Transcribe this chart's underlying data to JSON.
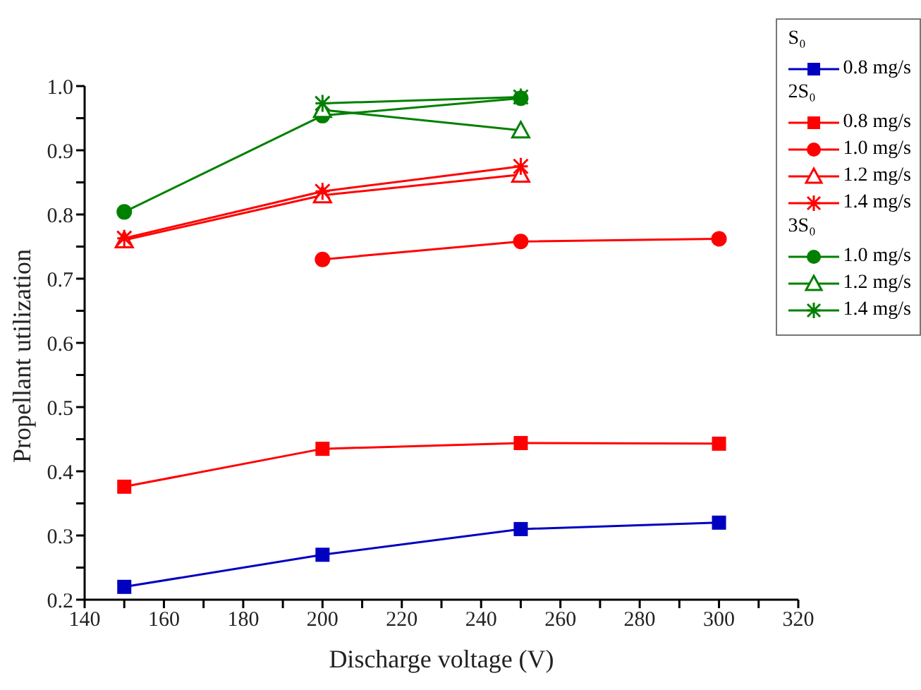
{
  "chart_data": {
    "type": "line",
    "xlabel": "Discharge voltage (V)",
    "ylabel": "Propellant utilization",
    "x": [
      150,
      200,
      250,
      300
    ],
    "series": [
      {
        "name": "0.8 mg/s",
        "color": "#0000c0",
        "marker": "square",
        "values": [
          0.22,
          0.27,
          0.31,
          0.32
        ]
      },
      {
        "name": "0.8 mg/s",
        "color": "#ff0000",
        "marker": "square",
        "values": [
          0.376,
          0.435,
          0.444,
          0.443
        ]
      },
      {
        "name": "1.0 mg/s",
        "color": "#ff0000",
        "marker": "circle",
        "values": [
          null,
          0.73,
          0.758,
          0.762
        ]
      },
      {
        "name": "1.2 mg/s",
        "color": "#ff0000",
        "marker": "triangle",
        "values": [
          0.76,
          0.83,
          0.862,
          null
        ]
      },
      {
        "name": "1.4 mg/s",
        "color": "#ff0000",
        "marker": "cross",
        "values": [
          0.763,
          0.836,
          0.875,
          null
        ]
      },
      {
        "name": "1.0 mg/s",
        "color": "#008000",
        "marker": "circle",
        "values": [
          0.804,
          0.954,
          0.981,
          null
        ]
      },
      {
        "name": "1.2 mg/s",
        "color": "#008000",
        "marker": "triangle",
        "values": [
          null,
          0.963,
          0.931,
          null
        ]
      },
      {
        "name": "1.4 mg/s",
        "color": "#008000",
        "marker": "cross",
        "values": [
          null,
          0.973,
          0.983,
          null
        ]
      }
    ],
    "annotations": [
      "S₀",
      "2S₀",
      "3S₀"
    ],
    "xlim": [
      140,
      320
    ],
    "xticks": [
      140,
      {
        "value": 150,
        "label": null
      },
      160,
      {
        "value": 170,
        "label": null
      },
      180,
      {
        "value": 190,
        "label": null
      },
      200,
      {
        "value": 210,
        "label": null
      },
      220,
      {
        "value": 230,
        "label": null
      },
      240,
      {
        "value": 250,
        "label": null
      },
      260,
      {
        "value": 270,
        "label": null
      },
      280,
      {
        "value": 290,
        "label": null
      },
      300,
      {
        "value": 310,
        "label": null
      },
      320
    ],
    "ylim": [
      0.2,
      1.0
    ],
    "yticks": [
      {
        "value": 0.2,
        "label": "0.2"
      },
      {
        "value": 0.25,
        "label": null
      },
      {
        "value": 0.3,
        "label": "0.3"
      },
      {
        "value": 0.35,
        "label": null
      },
      {
        "value": 0.4,
        "label": "0.4"
      },
      {
        "value": 0.45,
        "label": null
      },
      {
        "value": 0.5,
        "label": "0.5"
      },
      {
        "value": 0.55,
        "label": null
      },
      {
        "value": 0.6,
        "label": "0.6"
      },
      {
        "value": 0.65,
        "label": null
      },
      {
        "value": 0.7,
        "label": "0.7"
      },
      {
        "value": 0.75,
        "label": null
      },
      {
        "value": 0.8,
        "label": "0.8"
      },
      {
        "value": 0.85,
        "label": null
      },
      {
        "value": 0.9,
        "label": "0.9"
      },
      {
        "value": 0.95,
        "label": null
      },
      {
        "value": 1.0,
        "label": "1.0"
      }
    ],
    "grid": false,
    "legend": "top right"
  }
}
